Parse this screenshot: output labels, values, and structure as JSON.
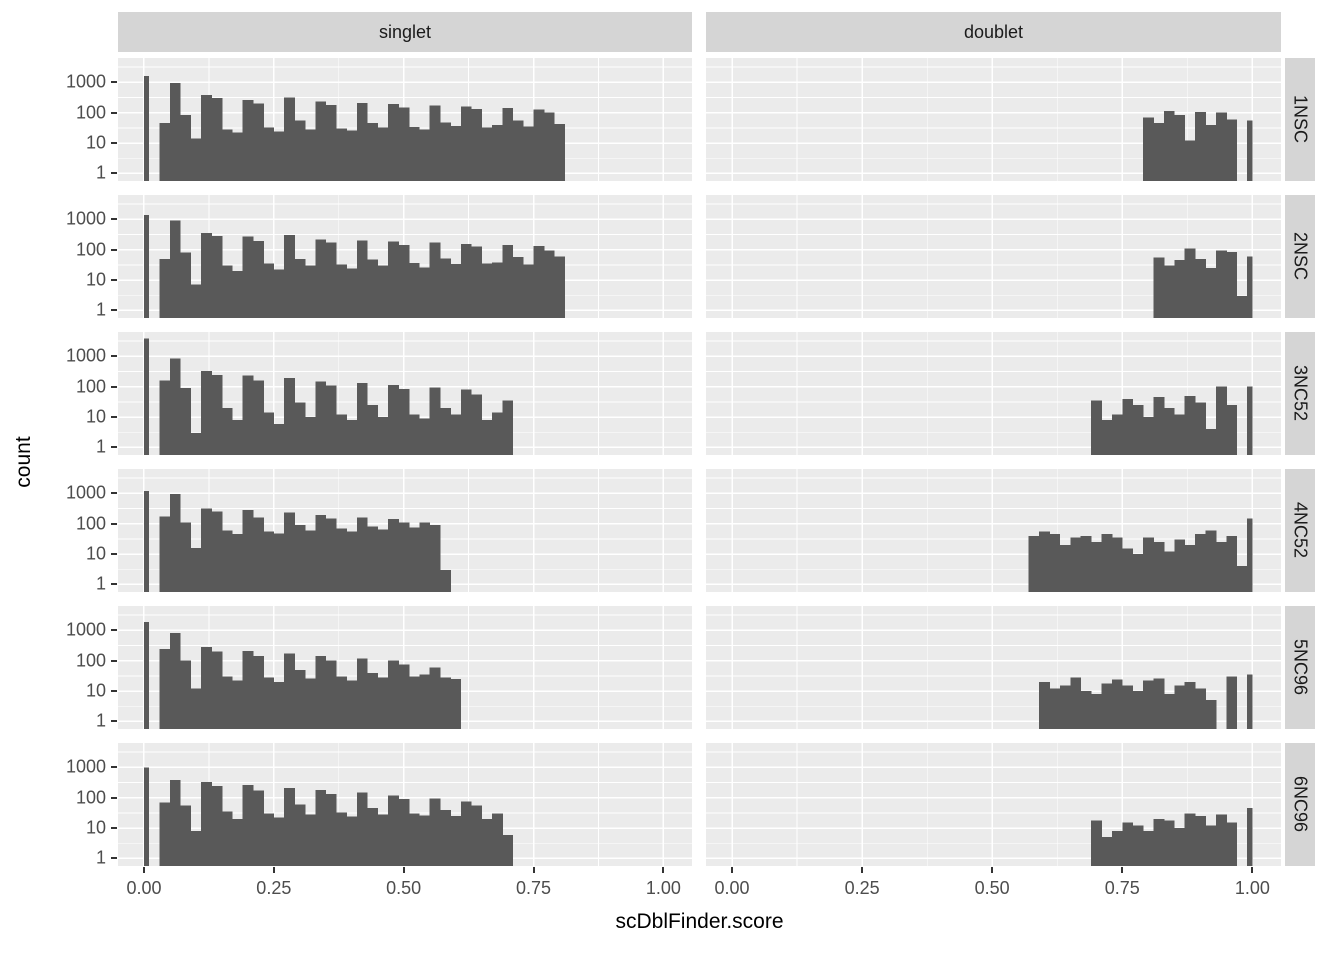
{
  "labels": {
    "x_title": "scDblFinder.score",
    "y_title": "count"
  },
  "facets": {
    "columns": [
      "singlet",
      "doublet"
    ],
    "rows": [
      "1NSC",
      "2NSC",
      "3NC52",
      "4NC52",
      "5NC96",
      "6NC96"
    ]
  },
  "axes": {
    "y_scale": "log10",
    "y_ticks": [
      "1000",
      "100",
      "10",
      "1"
    ],
    "y_tick_values": [
      1000,
      100,
      10,
      1
    ],
    "x_ticks": [
      "0.00",
      "0.25",
      "0.50",
      "0.75",
      "1.00"
    ],
    "x_tick_values": [
      0,
      0.25,
      0.5,
      0.75,
      1
    ],
    "x_domain": [
      -0.05,
      1.055
    ],
    "y_log_domain": [
      -0.25,
      3.8
    ],
    "x_minor_breaks": [
      0.125,
      0.375,
      0.625,
      0.875
    ],
    "y_minor_log_breaks": [
      0.5,
      1.5,
      2.5,
      3.5
    ],
    "y_major_log_breaks": [
      0,
      1,
      2,
      3
    ]
  },
  "colors": {
    "bar": "#595959",
    "panel_bg": "#ebebeb",
    "strip_bg": "#d5d5d5",
    "grid": "#ffffff",
    "tick_label": "#4d4d4d",
    "tick_mark": "#333333",
    "title": "#000000"
  },
  "chart_data": {
    "type": "bar",
    "subtype": "faceted-histogram-log-count",
    "xlabel": "scDblFinder.score",
    "ylabel": "count",
    "binwidth": 0.02,
    "panels": [
      {
        "row": "1NSC",
        "col": "singlet",
        "zero_bar": {
          "x": 0,
          "count": 1600
        },
        "bars_start": 0.04,
        "counts": [
          45,
          950,
          85,
          14,
          380,
          300,
          28,
          22,
          260,
          200,
          32,
          24,
          320,
          55,
          28,
          230,
          180,
          30,
          26,
          210,
          45,
          32,
          190,
          150,
          34,
          28,
          175,
          48,
          36,
          160,
          130,
          33,
          40,
          145,
          55,
          35,
          125,
          100,
          42
        ]
      },
      {
        "row": "1NSC",
        "col": "doublet",
        "bars_start": 0.8,
        "counts": [
          70,
          45,
          115,
          85,
          12,
          105,
          40,
          100,
          60
        ],
        "one_bar": {
          "x": 1,
          "count": 55
        }
      },
      {
        "row": "2NSC",
        "col": "singlet",
        "zero_bar": {
          "x": 0,
          "count": 1400
        },
        "bars_start": 0.04,
        "counts": [
          50,
          900,
          80,
          7,
          360,
          280,
          30,
          20,
          270,
          190,
          35,
          22,
          300,
          50,
          30,
          220,
          170,
          32,
          24,
          200,
          48,
          30,
          185,
          145,
          36,
          26,
          170,
          52,
          34,
          155,
          125,
          35,
          38,
          140,
          58,
          33,
          130,
          95,
          60
        ]
      },
      {
        "row": "2NSC",
        "col": "doublet",
        "bars_start": 0.82,
        "counts": [
          55,
          30,
          45,
          110,
          50,
          25,
          95,
          85,
          3
        ],
        "one_bar": {
          "x": 1,
          "count": 60
        }
      },
      {
        "row": "3NC52",
        "col": "singlet",
        "zero_bar": {
          "x": 0,
          "count": 3900
        },
        "bars_start": 0.04,
        "counts": [
          160,
          850,
          90,
          3,
          330,
          240,
          20,
          8,
          230,
          160,
          14,
          6,
          190,
          30,
          10,
          150,
          110,
          12,
          8,
          130,
          25,
          10,
          115,
          85,
          12,
          9,
          95,
          20,
          12,
          80,
          55,
          8,
          14,
          35
        ]
      },
      {
        "row": "3NC52",
        "col": "doublet",
        "bars_start": 0.7,
        "counts": [
          35,
          8,
          12,
          40,
          25,
          10,
          45,
          20,
          12,
          50,
          30,
          4,
          100,
          25
        ],
        "one_bar": {
          "x": 1,
          "count": 100
        }
      },
      {
        "row": "4NC52",
        "col": "singlet",
        "zero_bar": {
          "x": 0,
          "count": 1200
        },
        "bars_start": 0.04,
        "counts": [
          170,
          950,
          110,
          16,
          320,
          250,
          60,
          45,
          280,
          160,
          55,
          48,
          230,
          90,
          60,
          190,
          150,
          70,
          55,
          160,
          80,
          65,
          140,
          110,
          75,
          110,
          90,
          3
        ]
      },
      {
        "row": "4NC52",
        "col": "doublet",
        "bars_start": 0.58,
        "counts": [
          40,
          55,
          45,
          20,
          35,
          40,
          25,
          45,
          35,
          15,
          10,
          35,
          25,
          12,
          30,
          20,
          45,
          60,
          25,
          40,
          4
        ],
        "one_bar": {
          "x": 1,
          "count": 150
        }
      },
      {
        "row": "5NC96",
        "col": "singlet",
        "zero_bar": {
          "x": 0,
          "count": 1900
        },
        "bars_start": 0.04,
        "counts": [
          240,
          800,
          100,
          12,
          280,
          200,
          30,
          22,
          210,
          140,
          28,
          20,
          170,
          50,
          26,
          140,
          100,
          30,
          22,
          120,
          40,
          28,
          100,
          75,
          30,
          35,
          60,
          28,
          25
        ]
      },
      {
        "row": "5NC96",
        "col": "doublet",
        "bars_start": 0.6,
        "counts": [
          20,
          12,
          15,
          28,
          10,
          8,
          18,
          24,
          15,
          10,
          22,
          26,
          8,
          15,
          20,
          12,
          5,
          0,
          30
        ],
        "one_bar": {
          "x": 1,
          "count": 35
        }
      },
      {
        "row": "6NC96",
        "col": "singlet",
        "zero_bar": {
          "x": 0,
          "count": 1000
        },
        "bars_start": 0.04,
        "counts": [
          70,
          380,
          55,
          8,
          330,
          240,
          35,
          20,
          260,
          170,
          30,
          22,
          210,
          60,
          28,
          180,
          130,
          32,
          24,
          150,
          45,
          28,
          120,
          90,
          30,
          26,
          95,
          40,
          25,
          75,
          55,
          20,
          30,
          6
        ]
      },
      {
        "row": "6NC96",
        "col": "doublet",
        "bars_start": 0.7,
        "counts": [
          18,
          5,
          8,
          15,
          12,
          8,
          20,
          18,
          10,
          30,
          25,
          12,
          28,
          15
        ],
        "one_bar": {
          "x": 1,
          "count": 45
        }
      }
    ]
  }
}
